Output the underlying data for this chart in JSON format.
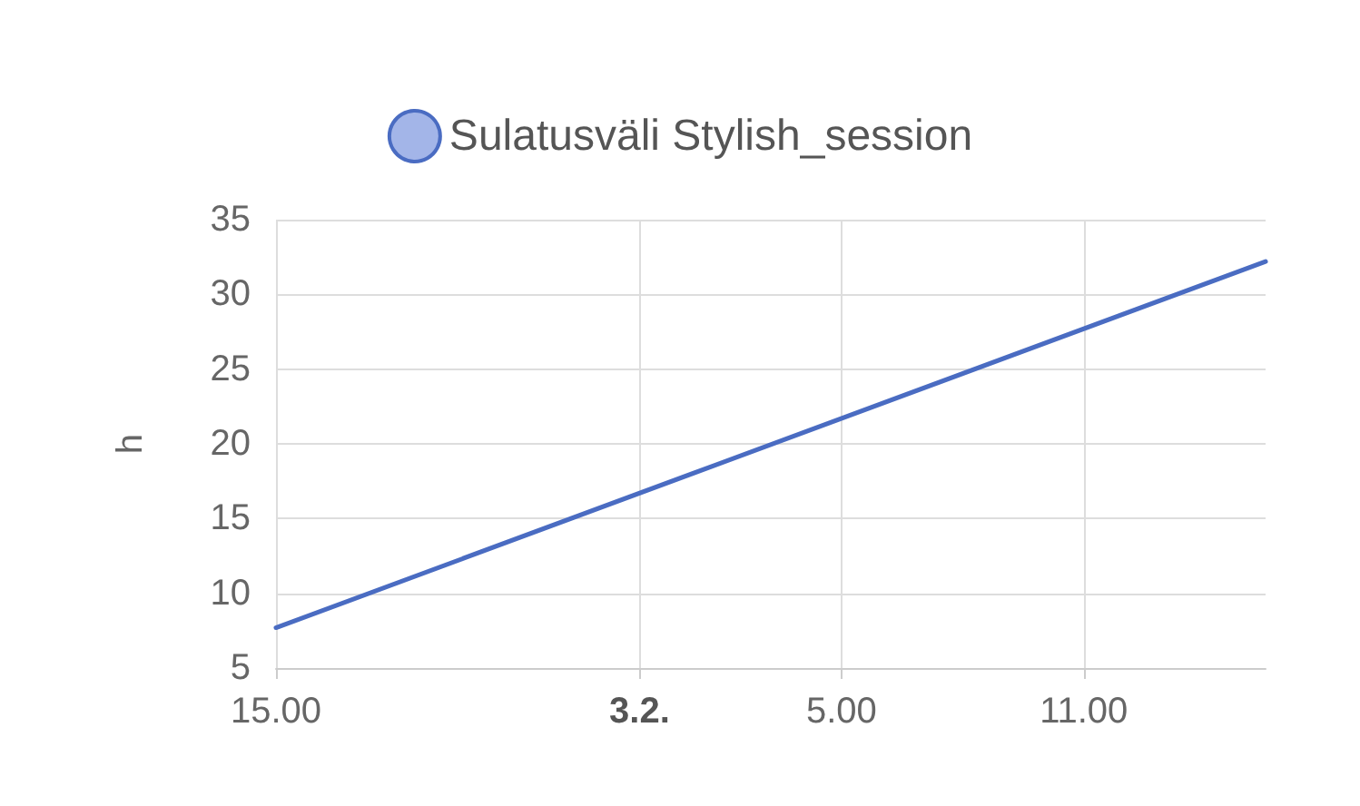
{
  "chart_data": {
    "type": "line",
    "ylabel": "h",
    "x": [
      "--02-02T15:00",
      "--02-03T15:30"
    ],
    "series": [
      {
        "name": "Sulatusväli Stylish_session",
        "color": "#4a6cc2",
        "values": [
          7.7,
          32.2
        ]
      }
    ],
    "xlim": [
      "--02-02T15:00",
      "--02-03T15:30"
    ],
    "xticks": [
      {
        "value": "--02-02T15:00",
        "label": "15.00"
      },
      {
        "value": "--02-03T00:00",
        "label": "3.2."
      },
      {
        "value": "--02-03T05:00",
        "label": "5.00"
      },
      {
        "value": "--02-03T11:00",
        "label": "11.00"
      }
    ],
    "ylim": [
      5,
      35
    ],
    "yticks": [
      5,
      10,
      15,
      20,
      25,
      30,
      35
    ],
    "grid": true,
    "legend": "top",
    "marker": "none",
    "line_style": "solid"
  }
}
